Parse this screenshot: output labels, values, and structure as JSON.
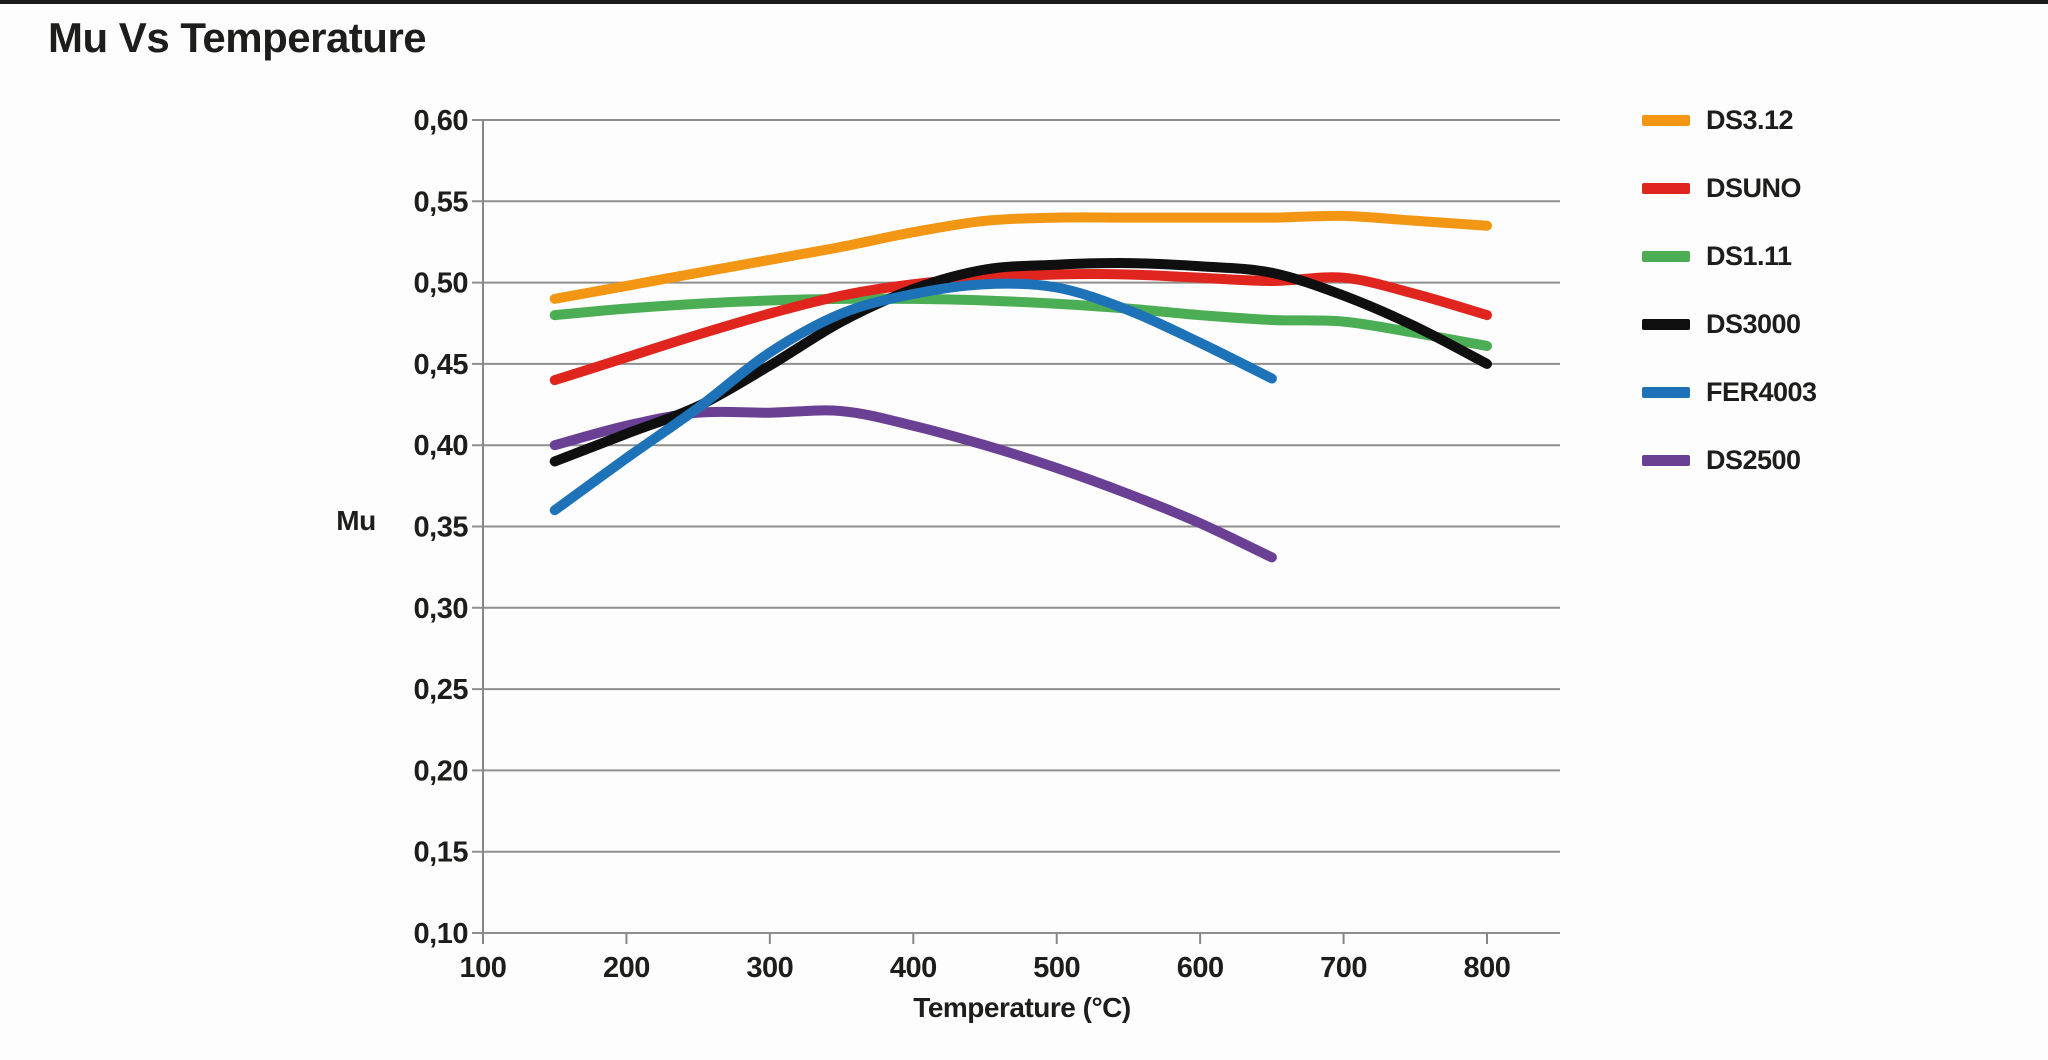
{
  "chart_data": {
    "type": "line",
    "title": "Mu Vs Temperature",
    "xlabel": "Temperature (°C)",
    "ylabel": "Mu",
    "xlim": [
      100,
      800
    ],
    "ylim": [
      0.1,
      0.6
    ],
    "grid": "horizontal",
    "legend_position": "right",
    "x_ticks": {
      "values": [
        100,
        200,
        300,
        400,
        500,
        600,
        700,
        800
      ],
      "labels": [
        "100",
        "200",
        "300",
        "400",
        "500",
        "600",
        "700",
        "800"
      ]
    },
    "y_ticks": {
      "values": [
        0.6,
        0.55,
        0.5,
        0.45,
        0.4,
        0.35,
        0.3,
        0.25,
        0.2,
        0.15,
        0.1
      ],
      "labels": [
        "0,60",
        "0,55",
        "0,50",
        "0,45",
        "0,40",
        "0,35",
        "0,30",
        "0,25",
        "0,20",
        "0,15",
        "0,10"
      ]
    },
    "series": [
      {
        "name": "DS3.12",
        "color": "#F39613",
        "x": [
          150,
          200,
          250,
          300,
          350,
          400,
          450,
          500,
          550,
          600,
          650,
          700,
          750,
          800
        ],
        "y": [
          0.49,
          0.498,
          0.506,
          0.514,
          0.522,
          0.531,
          0.538,
          0.54,
          0.54,
          0.54,
          0.54,
          0.541,
          0.538,
          0.535
        ]
      },
      {
        "name": "DSUNO",
        "color": "#E0251F",
        "x": [
          150,
          200,
          250,
          300,
          350,
          400,
          450,
          500,
          550,
          600,
          650,
          700,
          750,
          800
        ],
        "y": [
          0.44,
          0.454,
          0.468,
          0.481,
          0.492,
          0.499,
          0.503,
          0.505,
          0.505,
          0.503,
          0.501,
          0.503,
          0.493,
          0.48
        ]
      },
      {
        "name": "DS1.11",
        "color": "#4CAE54",
        "x": [
          150,
          200,
          250,
          300,
          350,
          400,
          450,
          500,
          550,
          600,
          650,
          700,
          750,
          800
        ],
        "y": [
          0.48,
          0.484,
          0.487,
          0.489,
          0.49,
          0.49,
          0.489,
          0.487,
          0.484,
          0.48,
          0.477,
          0.476,
          0.469,
          0.461
        ]
      },
      {
        "name": "DS3000",
        "color": "#0F0F0F",
        "x": [
          150,
          200,
          250,
          300,
          350,
          400,
          450,
          500,
          550,
          600,
          650,
          700,
          750,
          800
        ],
        "y": [
          0.39,
          0.407,
          0.424,
          0.449,
          0.476,
          0.496,
          0.508,
          0.511,
          0.512,
          0.51,
          0.506,
          0.492,
          0.473,
          0.45
        ]
      },
      {
        "name": "FER4003",
        "color": "#1D72B8",
        "x": [
          150,
          200,
          250,
          300,
          350,
          400,
          450,
          500,
          550,
          600,
          650
        ],
        "y": [
          0.36,
          0.392,
          0.423,
          0.457,
          0.481,
          0.493,
          0.499,
          0.497,
          0.483,
          0.463,
          0.441
        ]
      },
      {
        "name": "DS2500",
        "color": "#6A4095",
        "x": [
          150,
          200,
          250,
          300,
          350,
          400,
          450,
          500,
          550,
          600,
          650
        ],
        "y": [
          0.4,
          0.412,
          0.42,
          0.42,
          0.421,
          0.412,
          0.4,
          0.386,
          0.37,
          0.352,
          0.331
        ]
      }
    ]
  },
  "colors": {
    "top_bar": "#1B1B1B",
    "grid": "#8F8F8F",
    "text": "#1D1D1B",
    "background": "#FDFDFD"
  }
}
